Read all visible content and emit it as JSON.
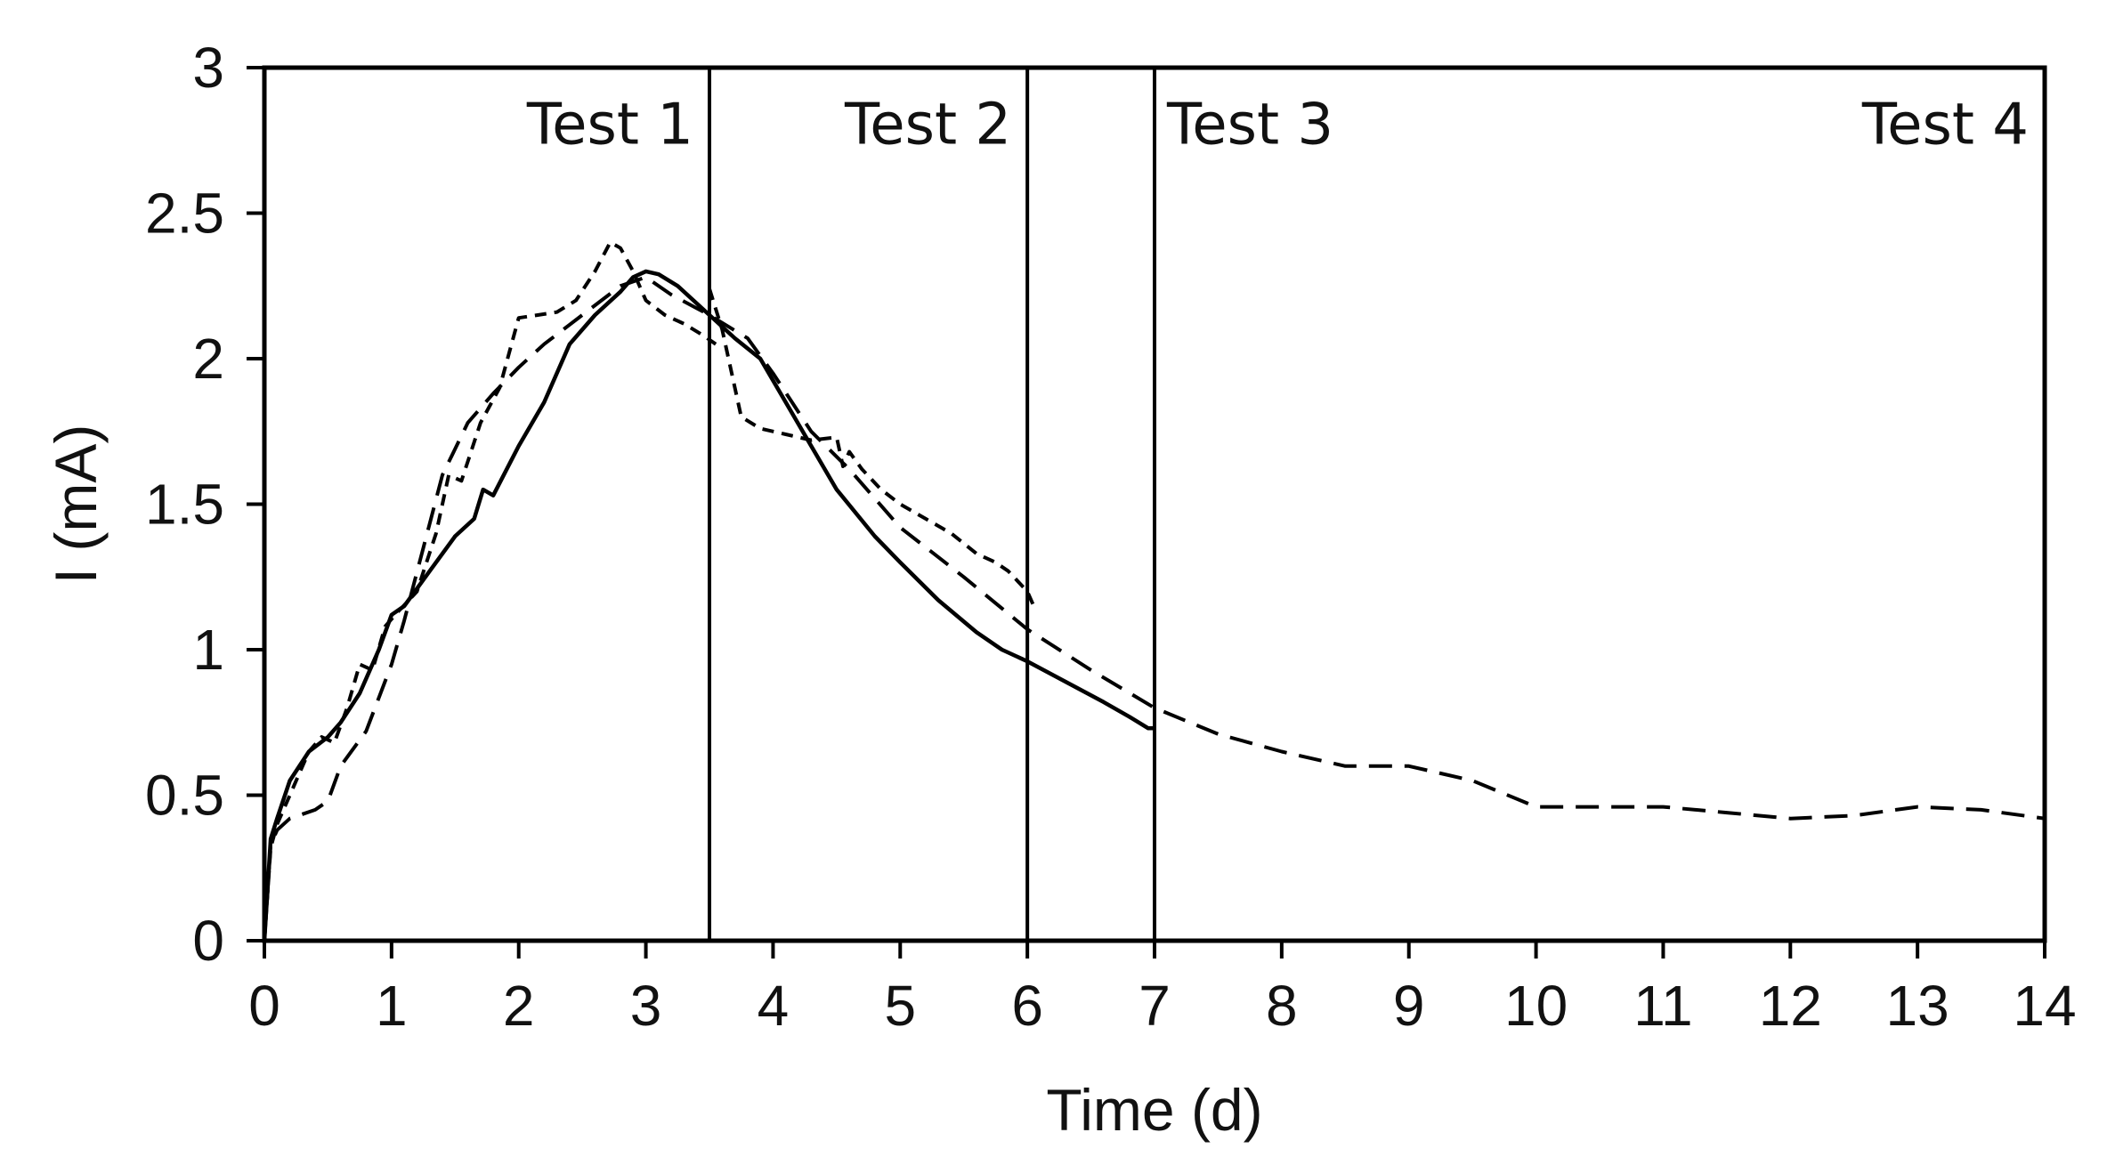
{
  "chart_data": {
    "type": "line",
    "title": "",
    "xlabel": "Time (d)",
    "ylabel": "I (mA)",
    "xlim": [
      0,
      14
    ],
    "ylim": [
      0,
      3
    ],
    "xticks": [
      "0",
      "1",
      "2",
      "3",
      "4",
      "5",
      "6",
      "7",
      "8",
      "9",
      "10",
      "11",
      "12",
      "13",
      "14"
    ],
    "yticks": [
      "0",
      "0.5",
      "1",
      "1.5",
      "2",
      "2.5",
      "3"
    ],
    "grid": false,
    "legend": "none",
    "dividers": [
      3.5,
      6,
      7
    ],
    "annotations": [
      {
        "text": "Test 1",
        "x": 3.5,
        "y": 2.8,
        "align": "end"
      },
      {
        "text": "Test 2",
        "x": 6,
        "y": 2.8,
        "align": "end"
      },
      {
        "text": "Test 3",
        "x": 7,
        "y": 2.8,
        "align": "start"
      },
      {
        "text": "Test 4",
        "x": 14,
        "y": 2.8,
        "align": "end"
      }
    ],
    "series": [
      {
        "name": "Test 1",
        "style": "dotted",
        "x": [
          0,
          0.05,
          0.1,
          0.2,
          0.35,
          0.45,
          0.55,
          0.65,
          0.75,
          0.85,
          0.95,
          1.05,
          1.2,
          1.35,
          1.45,
          1.55,
          1.7,
          1.85,
          2.0,
          2.15,
          2.3,
          2.45,
          2.6,
          2.72,
          2.8,
          2.9,
          3.0,
          3.15,
          3.3,
          3.45,
          3.55
        ],
        "y": [
          0,
          0.32,
          0.4,
          0.5,
          0.65,
          0.7,
          0.68,
          0.8,
          0.95,
          0.93,
          1.08,
          1.13,
          1.2,
          1.4,
          1.6,
          1.58,
          1.78,
          1.9,
          2.14,
          2.15,
          2.16,
          2.2,
          2.3,
          2.4,
          2.38,
          2.3,
          2.2,
          2.15,
          2.12,
          2.08,
          2.05
        ]
      },
      {
        "name": "Test 2",
        "style": "short-dash",
        "x": [
          3.5,
          3.6,
          3.75,
          3.9,
          4.1,
          4.3,
          4.5,
          4.55,
          4.6,
          4.7,
          4.85,
          5.0,
          5.2,
          5.4,
          5.6,
          5.75,
          5.85,
          6.0,
          6.05
        ],
        "y": [
          2.24,
          2.1,
          1.8,
          1.76,
          1.74,
          1.72,
          1.73,
          1.63,
          1.68,
          1.62,
          1.55,
          1.5,
          1.45,
          1.4,
          1.33,
          1.3,
          1.27,
          1.2,
          1.15
        ]
      },
      {
        "name": "Test 3",
        "style": "solid",
        "x": [
          0,
          0.05,
          0.1,
          0.2,
          0.35,
          0.5,
          0.6,
          0.75,
          0.9,
          1.0,
          1.1,
          1.3,
          1.5,
          1.65,
          1.72,
          1.8,
          2.0,
          2.2,
          2.4,
          2.6,
          2.8,
          2.9,
          3.0,
          3.1,
          3.25,
          3.5,
          3.7,
          3.9,
          4.1,
          4.3,
          4.5,
          4.8,
          5.0,
          5.3,
          5.6,
          5.8,
          6.0,
          6.3,
          6.6,
          6.8,
          6.95,
          7.0
        ],
        "y": [
          0,
          0.35,
          0.42,
          0.55,
          0.65,
          0.7,
          0.75,
          0.85,
          1.0,
          1.12,
          1.15,
          1.27,
          1.39,
          1.45,
          1.55,
          1.53,
          1.7,
          1.85,
          2.05,
          2.15,
          2.23,
          2.28,
          2.3,
          2.29,
          2.25,
          2.15,
          2.07,
          2.0,
          1.85,
          1.7,
          1.55,
          1.39,
          1.3,
          1.17,
          1.06,
          1.0,
          0.96,
          0.89,
          0.82,
          0.77,
          0.73,
          0.73
        ]
      },
      {
        "name": "Test 4",
        "style": "long-dash",
        "x": [
          0,
          0.05,
          0.1,
          0.2,
          0.4,
          0.5,
          0.6,
          0.8,
          1.0,
          1.1,
          1.25,
          1.4,
          1.6,
          1.8,
          2.0,
          2.2,
          2.5,
          2.8,
          3.0,
          3.2,
          3.5,
          3.8,
          4.0,
          4.3,
          4.6,
          5.0,
          5.5,
          6.0,
          6.5,
          7.0,
          7.5,
          8.0,
          8.5,
          9.0,
          9.5,
          10.0,
          10.5,
          11.0,
          11.5,
          12.0,
          12.5,
          13.0,
          13.5,
          14.0
        ],
        "y": [
          0,
          0.33,
          0.38,
          0.42,
          0.45,
          0.48,
          0.6,
          0.72,
          0.95,
          1.1,
          1.35,
          1.6,
          1.78,
          1.88,
          1.97,
          2.05,
          2.15,
          2.25,
          2.28,
          2.22,
          2.15,
          2.07,
          1.95,
          1.75,
          1.62,
          1.42,
          1.25,
          1.07,
          0.93,
          0.8,
          0.71,
          0.65,
          0.6,
          0.6,
          0.55,
          0.46,
          0.46,
          0.46,
          0.44,
          0.42,
          0.43,
          0.46,
          0.45,
          0.42
        ]
      }
    ]
  }
}
